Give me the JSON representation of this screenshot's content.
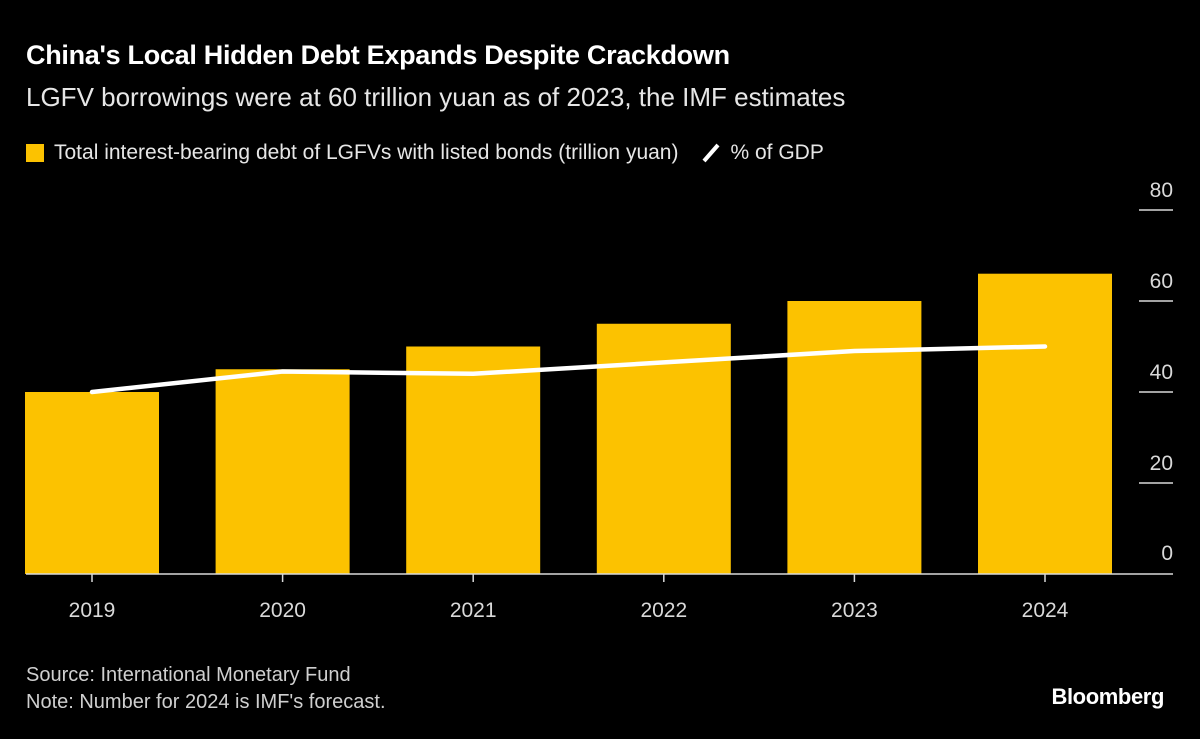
{
  "title": "China's Local Hidden Debt Expands Despite Crackdown",
  "subtitle": "LGFV borrowings were at 60 trillion yuan as of 2023, the IMF estimates",
  "source": "Source: International Monetary Fund",
  "note": "Note: Number for 2024 is IMF's forecast.",
  "logo": "Bloomberg",
  "chart_data": {
    "type": "bar",
    "categories": [
      "2019",
      "2020",
      "2021",
      "2022",
      "2023",
      "2024"
    ],
    "series": [
      {
        "name": "Total interest-bearing debt of LGFVs with listed bonds (trillion yuan)",
        "type": "bar",
        "color": "#fcc200",
        "values": [
          40,
          45,
          50,
          55,
          60,
          66
        ]
      },
      {
        "name": "% of GDP",
        "type": "line",
        "color": "#ffffff",
        "values": [
          40,
          44.5,
          44,
          46.5,
          49,
          50
        ]
      }
    ],
    "yticks": [
      "0",
      "20",
      "40",
      "60",
      "80"
    ],
    "ylim": [
      0,
      80
    ],
    "yaxis_side": "right",
    "legend_placement": "top-left",
    "grid": false
  }
}
